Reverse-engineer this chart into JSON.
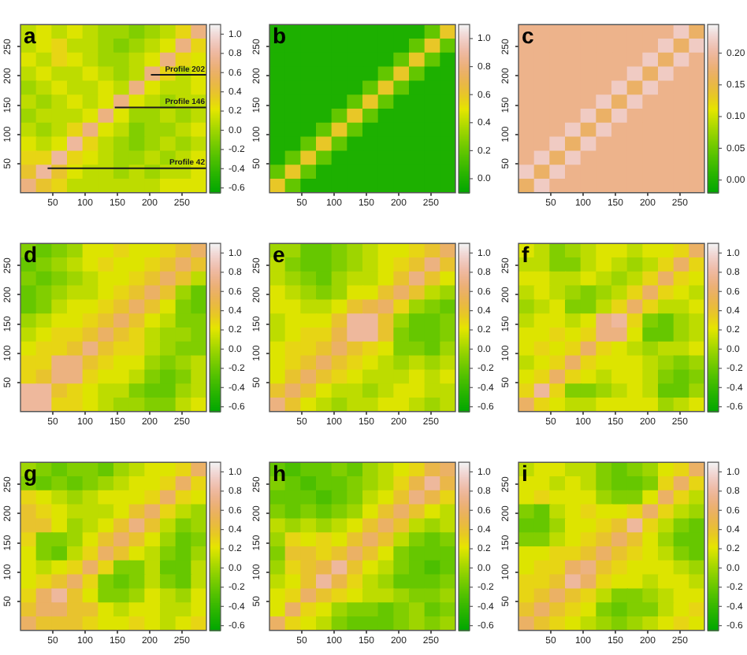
{
  "chart_data": [
    {
      "type": "heatmap",
      "title": "a",
      "xlim": [
        0,
        288
      ],
      "ylim": [
        0,
        288
      ],
      "xticks": [
        50,
        100,
        150,
        200,
        250
      ],
      "yticks": [
        50,
        100,
        150,
        200,
        250
      ],
      "clim": [
        -0.65,
        1.1
      ],
      "cticks": [
        -0.6,
        -0.4,
        -0.2,
        {
          "value": 0,
          "label": "0.0"
        },
        0.2,
        0.4,
        0.6,
        0.8,
        {
          "value": 1,
          "label": "1.0"
        }
      ],
      "ref_lines": [
        {
          "axis": "y",
          "value": 202,
          "label": "Profile 202",
          "color": "#1a1a1a"
        },
        {
          "axis": "y",
          "value": 146,
          "label": "Profile 146",
          "color": "#1a1a1a"
        },
        {
          "axis": "y",
          "value": 42,
          "label": "Profile 42",
          "color": "#1a1a1a"
        }
      ],
      "cells": [
        [
          0.1,
          0.2,
          0.1,
          0.2,
          0.1,
          0.0,
          0.0,
          -0.1,
          0.0,
          0.1,
          0.3,
          0.7
        ],
        [
          0.1,
          0.2,
          0.3,
          0.1,
          0.1,
          0.0,
          -0.1,
          0.0,
          0.1,
          0.2,
          0.7,
          0.3
        ],
        [
          0.2,
          0.1,
          0.3,
          0.2,
          0.1,
          0.0,
          0.0,
          0.1,
          0.2,
          0.7,
          0.3,
          0.2
        ],
        [
          0.1,
          0.2,
          0.1,
          0.1,
          0.2,
          0.1,
          0.0,
          0.1,
          0.7,
          0.3,
          0.1,
          0.2
        ],
        [
          0.0,
          0.1,
          0.2,
          0.1,
          0.1,
          0.2,
          0.1,
          0.7,
          0.2,
          0.1,
          0.1,
          0.2
        ],
        [
          0.1,
          0.0,
          0.1,
          0.2,
          0.1,
          0.2,
          0.7,
          0.2,
          0.1,
          0.0,
          0.1,
          0.1
        ],
        [
          0.0,
          0.1,
          0.1,
          0.1,
          0.2,
          0.7,
          0.2,
          0.0,
          0.0,
          0.1,
          0.0,
          0.1
        ],
        [
          0.1,
          0.0,
          0.1,
          0.3,
          0.7,
          0.2,
          0.1,
          -0.1,
          0.0,
          0.0,
          0.1,
          0.2
        ],
        [
          0.2,
          0.1,
          0.2,
          0.8,
          0.3,
          0.1,
          0.0,
          -0.1,
          0.0,
          0.1,
          0.0,
          0.1
        ],
        [
          0.3,
          0.3,
          0.8,
          0.3,
          0.2,
          0.1,
          0.0,
          0.0,
          0.1,
          0.0,
          0.1,
          0.2
        ],
        [
          0.4,
          0.8,
          0.4,
          0.2,
          0.1,
          0.1,
          0.0,
          0.1,
          0.0,
          0.1,
          0.1,
          0.2
        ],
        [
          0.7,
          0.4,
          0.3,
          0.1,
          0.1,
          0.1,
          0.1,
          0.1,
          0.1,
          0.2,
          0.2,
          0.2
        ]
      ]
    },
    {
      "type": "heatmap",
      "title": "b",
      "xlim": [
        0,
        288
      ],
      "ylim": [
        0,
        288
      ],
      "xticks": [
        50,
        100,
        150,
        200,
        250
      ],
      "yticks": [
        50,
        100,
        150,
        200,
        250
      ],
      "clim": [
        -0.1,
        1.1
      ],
      "cticks": [
        {
          "value": 0,
          "label": "0.0"
        },
        0.2,
        0.4,
        0.6,
        0.8,
        {
          "value": 1,
          "label": "1.0"
        }
      ],
      "cells": [
        [
          0.0,
          0.0,
          0.0,
          0.0,
          0.0,
          0.0,
          0.0,
          0.0,
          0.0,
          0.0,
          0.2,
          0.6
        ],
        [
          0.0,
          0.0,
          0.0,
          0.0,
          0.0,
          0.0,
          0.0,
          0.0,
          0.0,
          0.2,
          0.6,
          0.2
        ],
        [
          0.0,
          0.0,
          0.0,
          0.0,
          0.0,
          0.0,
          0.0,
          0.0,
          0.2,
          0.6,
          0.2,
          0.0
        ],
        [
          0.0,
          0.0,
          0.0,
          0.0,
          0.0,
          0.0,
          0.0,
          0.2,
          0.6,
          0.2,
          0.0,
          0.0
        ],
        [
          0.0,
          0.0,
          0.0,
          0.0,
          0.0,
          0.0,
          0.2,
          0.6,
          0.2,
          0.0,
          0.0,
          0.0
        ],
        [
          0.0,
          0.0,
          0.0,
          0.0,
          0.0,
          0.2,
          0.6,
          0.2,
          0.0,
          0.0,
          0.0,
          0.0
        ],
        [
          0.0,
          0.0,
          0.0,
          0.0,
          0.2,
          0.6,
          0.2,
          0.0,
          0.0,
          0.0,
          0.0,
          0.0
        ],
        [
          0.0,
          0.0,
          0.0,
          0.2,
          0.6,
          0.2,
          0.0,
          0.0,
          0.0,
          0.0,
          0.0,
          0.0
        ],
        [
          0.0,
          0.0,
          0.2,
          0.6,
          0.2,
          0.0,
          0.0,
          0.0,
          0.0,
          0.0,
          0.0,
          0.0
        ],
        [
          0.0,
          0.2,
          0.6,
          0.2,
          0.0,
          0.0,
          0.0,
          0.0,
          0.0,
          0.0,
          0.0,
          0.0
        ],
        [
          0.2,
          0.6,
          0.2,
          0.0,
          0.0,
          0.0,
          0.0,
          0.0,
          0.0,
          0.0,
          0.0,
          0.0
        ],
        [
          0.6,
          0.2,
          0.0,
          0.0,
          0.0,
          0.0,
          0.0,
          0.0,
          0.0,
          0.0,
          0.0,
          0.0
        ]
      ]
    },
    {
      "type": "heatmap",
      "title": "c",
      "xlim": [
        0,
        288
      ],
      "ylim": [
        0,
        288
      ],
      "xticks": [
        50,
        100,
        150,
        200,
        250
      ],
      "yticks": [
        50,
        100,
        150,
        200,
        250
      ],
      "clim": [
        -0.02,
        0.245
      ],
      "cticks": [
        {
          "value": 0,
          "label": "0.00"
        },
        0.05,
        {
          "value": 0.1,
          "label": "0.10"
        },
        0.15,
        {
          "value": 0.2,
          "label": "0.20"
        }
      ],
      "cells": [
        [
          0.19,
          0.19,
          0.19,
          0.19,
          0.19,
          0.19,
          0.19,
          0.19,
          0.19,
          0.19,
          0.22,
          0.17
        ],
        [
          0.19,
          0.19,
          0.19,
          0.19,
          0.19,
          0.19,
          0.19,
          0.19,
          0.19,
          0.22,
          0.17,
          0.22
        ],
        [
          0.19,
          0.19,
          0.19,
          0.19,
          0.19,
          0.19,
          0.19,
          0.19,
          0.22,
          0.17,
          0.22,
          0.19
        ],
        [
          0.19,
          0.19,
          0.19,
          0.19,
          0.19,
          0.19,
          0.19,
          0.22,
          0.17,
          0.22,
          0.19,
          0.19
        ],
        [
          0.19,
          0.19,
          0.19,
          0.19,
          0.19,
          0.19,
          0.22,
          0.17,
          0.22,
          0.19,
          0.19,
          0.19
        ],
        [
          0.19,
          0.19,
          0.19,
          0.19,
          0.19,
          0.22,
          0.17,
          0.22,
          0.19,
          0.19,
          0.19,
          0.19
        ],
        [
          0.19,
          0.19,
          0.19,
          0.19,
          0.22,
          0.17,
          0.22,
          0.19,
          0.19,
          0.19,
          0.19,
          0.19
        ],
        [
          0.19,
          0.19,
          0.19,
          0.22,
          0.17,
          0.22,
          0.19,
          0.19,
          0.19,
          0.19,
          0.19,
          0.19
        ],
        [
          0.19,
          0.19,
          0.22,
          0.17,
          0.22,
          0.19,
          0.19,
          0.19,
          0.19,
          0.19,
          0.19,
          0.19
        ],
        [
          0.19,
          0.22,
          0.17,
          0.22,
          0.19,
          0.19,
          0.19,
          0.19,
          0.19,
          0.19,
          0.19,
          0.19
        ],
        [
          0.22,
          0.17,
          0.22,
          0.19,
          0.19,
          0.19,
          0.19,
          0.19,
          0.19,
          0.19,
          0.19,
          0.19
        ],
        [
          0.17,
          0.22,
          0.19,
          0.19,
          0.19,
          0.19,
          0.19,
          0.19,
          0.19,
          0.19,
          0.19,
          0.19
        ]
      ]
    },
    {
      "type": "heatmap",
      "title": "d",
      "xlim": [
        0,
        288
      ],
      "ylim": [
        0,
        288
      ],
      "xticks": [
        50,
        100,
        150,
        200,
        250
      ],
      "yticks": [
        50,
        100,
        150,
        200,
        250
      ],
      "clim": [
        -0.65,
        1.1
      ],
      "cticks": [
        -0.6,
        -0.4,
        -0.2,
        {
          "value": 0,
          "label": "0.0"
        },
        0.2,
        0.4,
        0.6,
        0.8,
        {
          "value": 1,
          "label": "1.0"
        }
      ],
      "cells": [
        [
          -0.1,
          -0.2,
          -0.1,
          0.0,
          0.2,
          0.2,
          0.3,
          0.2,
          0.2,
          0.3,
          0.4,
          0.6
        ],
        [
          -0.2,
          -0.1,
          0.0,
          0.1,
          0.2,
          0.3,
          0.2,
          0.2,
          0.3,
          0.4,
          0.6,
          0.4
        ],
        [
          -0.1,
          -0.2,
          -0.1,
          0.0,
          0.1,
          0.2,
          0.2,
          0.3,
          0.4,
          0.6,
          0.4,
          0.1
        ],
        [
          -0.2,
          -0.1,
          0.0,
          0.1,
          0.1,
          0.2,
          0.3,
          0.4,
          0.6,
          0.4,
          0.0,
          -0.2
        ],
        [
          -0.2,
          -0.1,
          0.1,
          0.2,
          0.2,
          0.3,
          0.4,
          0.6,
          0.4,
          0.2,
          -0.1,
          -0.2
        ],
        [
          0.0,
          0.1,
          0.2,
          0.2,
          0.3,
          0.4,
          0.6,
          0.4,
          0.2,
          0.1,
          -0.1,
          -0.1
        ],
        [
          0.1,
          0.2,
          0.3,
          0.3,
          0.4,
          0.6,
          0.4,
          0.3,
          0.1,
          0.0,
          0.0,
          -0.1
        ],
        [
          0.2,
          0.3,
          0.3,
          0.4,
          0.7,
          0.4,
          0.3,
          0.3,
          0.1,
          0.0,
          -0.1,
          -0.1
        ],
        [
          0.3,
          0.3,
          0.7,
          0.7,
          0.4,
          0.3,
          0.2,
          0.2,
          0.0,
          -0.1,
          0.0,
          0.1
        ],
        [
          0.3,
          0.4,
          0.7,
          0.7,
          0.3,
          0.2,
          0.2,
          0.1,
          -0.1,
          -0.2,
          -0.1,
          0.1
        ],
        [
          0.8,
          0.8,
          0.4,
          0.3,
          0.2,
          0.1,
          0.1,
          -0.1,
          -0.2,
          -0.2,
          0.0,
          0.1
        ],
        [
          0.8,
          0.8,
          0.3,
          0.3,
          0.2,
          0.1,
          0.0,
          0.0,
          -0.1,
          -0.1,
          0.1,
          0.2
        ]
      ]
    },
    {
      "type": "heatmap",
      "title": "e",
      "xlim": [
        0,
        288
      ],
      "ylim": [
        0,
        288
      ],
      "xticks": [
        50,
        100,
        150,
        200,
        250
      ],
      "yticks": [
        50,
        100,
        150,
        200,
        250
      ],
      "clim": [
        -0.65,
        1.1
      ],
      "cticks": [
        -0.6,
        -0.4,
        -0.2,
        {
          "value": 0,
          "label": "0.0"
        },
        0.2,
        0.4,
        0.6,
        0.8,
        {
          "value": 1,
          "label": "1.0"
        }
      ],
      "cells": [
        [
          0.0,
          0.0,
          -0.2,
          -0.2,
          -0.1,
          0.0,
          0.1,
          0.2,
          0.2,
          0.3,
          0.4,
          0.6
        ],
        [
          0.1,
          -0.1,
          -0.2,
          -0.2,
          -0.1,
          0.0,
          0.1,
          0.2,
          0.3,
          0.4,
          0.7,
          0.4
        ],
        [
          0.1,
          0.0,
          -0.1,
          -0.2,
          0.0,
          0.1,
          0.1,
          0.2,
          0.4,
          0.7,
          0.4,
          0.2
        ],
        [
          0.2,
          0.1,
          0.0,
          -0.1,
          0.0,
          0.2,
          0.2,
          0.4,
          0.6,
          0.4,
          0.1,
          0.0
        ],
        [
          0.2,
          0.2,
          0.1,
          0.1,
          0.2,
          0.4,
          0.5,
          0.6,
          0.3,
          0.0,
          -0.1,
          -0.2
        ],
        [
          0.1,
          0.2,
          0.2,
          0.2,
          0.4,
          0.8,
          0.8,
          0.4,
          0.0,
          -0.2,
          -0.2,
          -0.1
        ],
        [
          0.1,
          0.2,
          0.3,
          0.3,
          0.5,
          0.8,
          0.8,
          0.4,
          -0.1,
          -0.2,
          -0.2,
          -0.1
        ],
        [
          0.2,
          0.3,
          0.3,
          0.4,
          0.6,
          0.4,
          0.3,
          0.2,
          -0.1,
          -0.1,
          -0.2,
          0.0
        ],
        [
          0.2,
          0.3,
          0.4,
          0.6,
          0.4,
          0.3,
          0.2,
          0.1,
          0.0,
          0.1,
          0.0,
          0.1
        ],
        [
          0.2,
          0.4,
          0.6,
          0.4,
          0.3,
          0.2,
          0.1,
          0.1,
          0.1,
          0.2,
          0.1,
          0.2
        ],
        [
          0.4,
          0.6,
          0.4,
          0.2,
          0.1,
          0.1,
          0.0,
          0.1,
          0.2,
          0.2,
          0.1,
          0.1
        ],
        [
          0.7,
          0.4,
          0.2,
          0.1,
          0.0,
          0.1,
          0.1,
          0.2,
          0.2,
          0.1,
          0.0,
          0.1
        ]
      ]
    },
    {
      "type": "heatmap",
      "title": "f",
      "xlim": [
        0,
        288
      ],
      "ylim": [
        0,
        288
      ],
      "xticks": [
        50,
        100,
        150,
        200,
        250
      ],
      "yticks": [
        50,
        100,
        150,
        200,
        250
      ],
      "clim": [
        -0.65,
        1.1
      ],
      "cticks": [
        -0.6,
        -0.4,
        -0.2,
        {
          "value": 0,
          "label": "0.0"
        },
        0.2,
        0.4,
        0.6,
        0.8,
        {
          "value": 1,
          "label": "1.0"
        }
      ],
      "cells": [
        [
          0.2,
          0.1,
          -0.1,
          0.0,
          0.1,
          0.2,
          0.2,
          0.1,
          0.2,
          0.2,
          0.3,
          0.6
        ],
        [
          0.1,
          0.1,
          -0.1,
          -0.1,
          0.1,
          0.2,
          0.1,
          0.0,
          0.1,
          0.3,
          0.6,
          0.3
        ],
        [
          0.2,
          0.2,
          0.1,
          0.1,
          0.2,
          0.1,
          0.0,
          0.1,
          0.3,
          0.6,
          0.3,
          0.2
        ],
        [
          0.1,
          0.2,
          0.1,
          0.0,
          -0.1,
          0.0,
          0.1,
          0.3,
          0.6,
          0.3,
          0.2,
          0.1
        ],
        [
          0.0,
          0.1,
          0.2,
          -0.1,
          -0.1,
          0.1,
          0.3,
          0.6,
          0.3,
          0.1,
          0.1,
          0.2
        ],
        [
          0.1,
          0.2,
          0.2,
          0.1,
          0.2,
          0.7,
          0.8,
          0.3,
          -0.1,
          -0.2,
          0.0,
          0.1
        ],
        [
          0.2,
          0.2,
          0.3,
          0.2,
          0.3,
          0.7,
          0.7,
          0.2,
          -0.2,
          -0.2,
          0.0,
          0.1
        ],
        [
          0.2,
          0.3,
          0.2,
          0.3,
          0.6,
          0.3,
          0.2,
          0.1,
          0.0,
          0.1,
          0.1,
          0.2
        ],
        [
          0.1,
          0.2,
          0.3,
          0.6,
          0.3,
          0.2,
          0.2,
          0.2,
          0.1,
          0.0,
          -0.1,
          0.0
        ],
        [
          0.2,
          0.3,
          0.6,
          0.3,
          0.2,
          0.1,
          0.2,
          0.2,
          0.1,
          -0.1,
          -0.2,
          -0.1
        ],
        [
          0.3,
          0.8,
          0.3,
          -0.1,
          -0.1,
          0.0,
          0.1,
          0.2,
          0.1,
          -0.2,
          -0.2,
          0.0
        ],
        [
          0.6,
          0.3,
          0.2,
          0.1,
          0.1,
          0.2,
          0.2,
          0.2,
          0.2,
          0.0,
          0.1,
          0.2
        ]
      ]
    },
    {
      "type": "heatmap",
      "title": "g",
      "xlim": [
        0,
        288
      ],
      "ylim": [
        0,
        288
      ],
      "xticks": [
        50,
        100,
        150,
        200,
        250
      ],
      "yticks": [
        50,
        100,
        150,
        200,
        250
      ],
      "clim": [
        -0.65,
        1.1
      ],
      "cticks": [
        -0.6,
        -0.4,
        -0.2,
        {
          "value": 0,
          "label": "0.0"
        },
        0.2,
        0.4,
        0.6,
        0.8,
        {
          "value": 1,
          "label": "1.0"
        }
      ],
      "cells": [
        [
          0.0,
          -0.1,
          -0.2,
          -0.1,
          -0.1,
          -0.2,
          0.0,
          0.1,
          0.2,
          0.2,
          0.3,
          0.6
        ],
        [
          -0.1,
          -0.2,
          -0.1,
          -0.2,
          -0.1,
          0.0,
          0.1,
          0.2,
          0.2,
          0.3,
          0.6,
          0.3
        ],
        [
          0.3,
          0.2,
          0.1,
          0.0,
          0.1,
          0.2,
          0.2,
          0.2,
          0.3,
          0.6,
          0.3,
          0.2
        ],
        [
          0.4,
          0.3,
          0.2,
          0.1,
          0.1,
          0.1,
          0.2,
          0.4,
          0.6,
          0.3,
          0.1,
          0.0
        ],
        [
          0.4,
          0.4,
          0.2,
          0.0,
          0.1,
          0.2,
          0.4,
          0.7,
          0.4,
          0.1,
          -0.1,
          0.0
        ],
        [
          0.3,
          -0.1,
          -0.1,
          0.0,
          0.2,
          0.4,
          0.6,
          0.4,
          0.2,
          0.0,
          -0.2,
          -0.1
        ],
        [
          0.2,
          -0.1,
          -0.2,
          0.1,
          0.3,
          0.6,
          0.4,
          0.2,
          0.1,
          -0.1,
          -0.2,
          0.0
        ],
        [
          0.2,
          0.1,
          0.2,
          0.3,
          0.6,
          0.3,
          -0.1,
          -0.1,
          0.1,
          -0.2,
          -0.2,
          0.1
        ],
        [
          0.2,
          0.3,
          0.4,
          0.6,
          0.3,
          -0.1,
          -0.2,
          -0.1,
          0.1,
          -0.1,
          -0.2,
          0.1
        ],
        [
          0.3,
          0.6,
          0.8,
          0.4,
          0.2,
          -0.1,
          -0.1,
          0.0,
          0.2,
          0.1,
          0.0,
          0.2
        ],
        [
          0.4,
          0.6,
          0.6,
          0.4,
          0.4,
          0.2,
          0.1,
          0.2,
          0.2,
          0.1,
          0.1,
          0.2
        ],
        [
          0.6,
          0.4,
          0.4,
          0.4,
          0.3,
          0.2,
          0.2,
          0.3,
          0.2,
          0.1,
          0.2,
          0.3
        ]
      ]
    },
    {
      "type": "heatmap",
      "title": "h",
      "xlim": [
        0,
        288
      ],
      "ylim": [
        0,
        288
      ],
      "xticks": [
        50,
        100,
        150,
        200,
        250
      ],
      "yticks": [
        50,
        100,
        150,
        200,
        250
      ],
      "clim": [
        -0.65,
        1.1
      ],
      "cticks": [
        -0.6,
        -0.4,
        -0.2,
        {
          "value": 0,
          "label": "0.0"
        },
        0.2,
        0.4,
        0.6,
        0.8,
        {
          "value": 1,
          "label": "1.0"
        }
      ],
      "cells": [
        [
          -0.2,
          -0.3,
          -0.2,
          -0.2,
          -0.1,
          -0.2,
          0.0,
          0.1,
          0.2,
          0.3,
          0.5,
          0.6
        ],
        [
          -0.1,
          -0.2,
          -0.3,
          -0.2,
          -0.2,
          -0.1,
          0.0,
          0.1,
          0.3,
          0.5,
          0.8,
          0.5
        ],
        [
          -0.2,
          -0.2,
          -0.2,
          -0.3,
          -0.2,
          -0.1,
          0.1,
          0.2,
          0.4,
          0.7,
          0.5,
          0.3
        ],
        [
          -0.1,
          -0.2,
          -0.1,
          -0.2,
          -0.1,
          0.0,
          0.2,
          0.4,
          0.6,
          0.4,
          0.2,
          0.1
        ],
        [
          0.1,
          0.0,
          0.1,
          0.0,
          0.1,
          0.2,
          0.4,
          0.6,
          0.4,
          0.1,
          0.0,
          0.1
        ],
        [
          0.0,
          0.3,
          0.2,
          0.3,
          0.2,
          0.4,
          0.6,
          0.4,
          0.1,
          -0.1,
          -0.2,
          -0.1
        ],
        [
          -0.1,
          0.4,
          0.4,
          0.3,
          0.4,
          0.6,
          0.4,
          0.2,
          -0.1,
          -0.2,
          -0.2,
          -0.2
        ],
        [
          0.0,
          0.3,
          0.4,
          0.5,
          0.8,
          0.4,
          0.2,
          0.1,
          -0.1,
          -0.2,
          -0.3,
          -0.2
        ],
        [
          0.1,
          0.2,
          0.4,
          0.8,
          0.5,
          0.3,
          0.1,
          0.0,
          -0.2,
          -0.2,
          -0.2,
          -0.1
        ],
        [
          0.2,
          0.3,
          0.6,
          0.4,
          0.3,
          0.2,
          0.1,
          0.1,
          0.0,
          -0.1,
          -0.1,
          0.0
        ],
        [
          0.2,
          0.6,
          0.3,
          0.2,
          0.0,
          -0.1,
          -0.1,
          -0.2,
          -0.1,
          0.0,
          -0.2,
          -0.1
        ],
        [
          0.6,
          0.3,
          0.2,
          0.1,
          -0.1,
          -0.2,
          -0.2,
          -0.2,
          -0.1,
          0.0,
          -0.1,
          0.0
        ]
      ]
    },
    {
      "type": "heatmap",
      "title": "i",
      "xlim": [
        0,
        288
      ],
      "ylim": [
        0,
        288
      ],
      "xticks": [
        50,
        100,
        150,
        200,
        250
      ],
      "yticks": [
        50,
        100,
        150,
        200,
        250
      ],
      "clim": [
        -0.65,
        1.1
      ],
      "cticks": [
        -0.6,
        -0.4,
        -0.2,
        {
          "value": 0,
          "label": "0.0"
        },
        0.2,
        0.4,
        0.6,
        0.8,
        {
          "value": 1,
          "label": "1.0"
        }
      ],
      "cells": [
        [
          0.1,
          0.2,
          0.2,
          0.1,
          0.1,
          -0.1,
          -0.2,
          -0.1,
          0.0,
          0.2,
          0.3,
          0.6
        ],
        [
          0.2,
          0.2,
          0.1,
          0.2,
          0.1,
          -0.1,
          -0.2,
          -0.2,
          -0.1,
          0.3,
          0.6,
          0.3
        ],
        [
          0.2,
          0.3,
          0.2,
          0.2,
          0.2,
          0.0,
          -0.1,
          -0.1,
          0.2,
          0.6,
          0.3,
          0.1
        ],
        [
          -0.1,
          -0.2,
          0.1,
          0.2,
          0.3,
          0.2,
          0.2,
          0.3,
          0.6,
          0.3,
          0.1,
          0.0
        ],
        [
          -0.2,
          -0.2,
          0.0,
          0.2,
          0.2,
          0.3,
          0.4,
          0.8,
          0.3,
          0.1,
          -0.1,
          -0.2
        ],
        [
          -0.1,
          -0.1,
          0.1,
          0.2,
          0.3,
          0.4,
          0.6,
          0.4,
          0.2,
          0.0,
          -0.2,
          -0.2
        ],
        [
          0.2,
          0.2,
          0.3,
          0.3,
          0.4,
          0.6,
          0.4,
          0.3,
          0.2,
          0.1,
          -0.1,
          -0.2
        ],
        [
          0.2,
          0.3,
          0.3,
          0.6,
          0.7,
          0.4,
          0.3,
          0.2,
          0.2,
          0.2,
          0.1,
          0.0
        ],
        [
          0.3,
          0.3,
          0.4,
          0.8,
          0.6,
          0.3,
          0.2,
          0.2,
          0.1,
          0.2,
          0.2,
          0.1
        ],
        [
          0.3,
          0.4,
          0.6,
          0.4,
          0.3,
          0.1,
          -0.1,
          -0.1,
          0.0,
          0.1,
          0.2,
          0.2
        ],
        [
          0.4,
          0.6,
          0.4,
          0.3,
          0.2,
          -0.1,
          -0.2,
          -0.1,
          -0.1,
          0.1,
          0.2,
          0.3
        ],
        [
          0.6,
          0.4,
          0.3,
          0.2,
          0.1,
          0.0,
          -0.1,
          0.0,
          0.1,
          0.2,
          0.3,
          0.2
        ]
      ]
    }
  ]
}
